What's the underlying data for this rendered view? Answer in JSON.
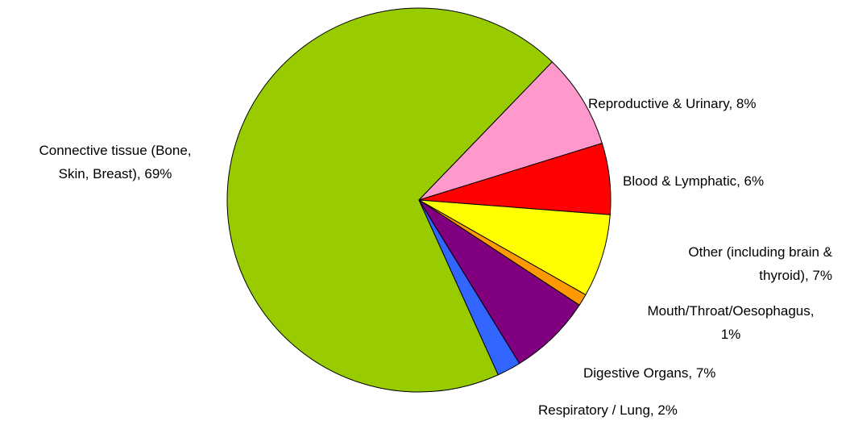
{
  "chart_data": {
    "type": "pie",
    "labels": [
      "Connective tissue (Bone,\nSkin, Breast), 69%",
      "Reproductive & Urinary, 8%",
      "Blood & Lymphatic, 6%",
      "Other (including brain &\nthyroid), 7%",
      "Mouth/Throat/Oesophagus,\n1%",
      "Digestive Organs, 7%",
      "Respiratory / Lung, 2%"
    ],
    "values": [
      69,
      8,
      6,
      7,
      1,
      7,
      2
    ],
    "colors": [
      "#99cc00",
      "#ff99cc",
      "#ff0000",
      "#ffff00",
      "#ff9900",
      "#800080",
      "#3366ff"
    ]
  }
}
